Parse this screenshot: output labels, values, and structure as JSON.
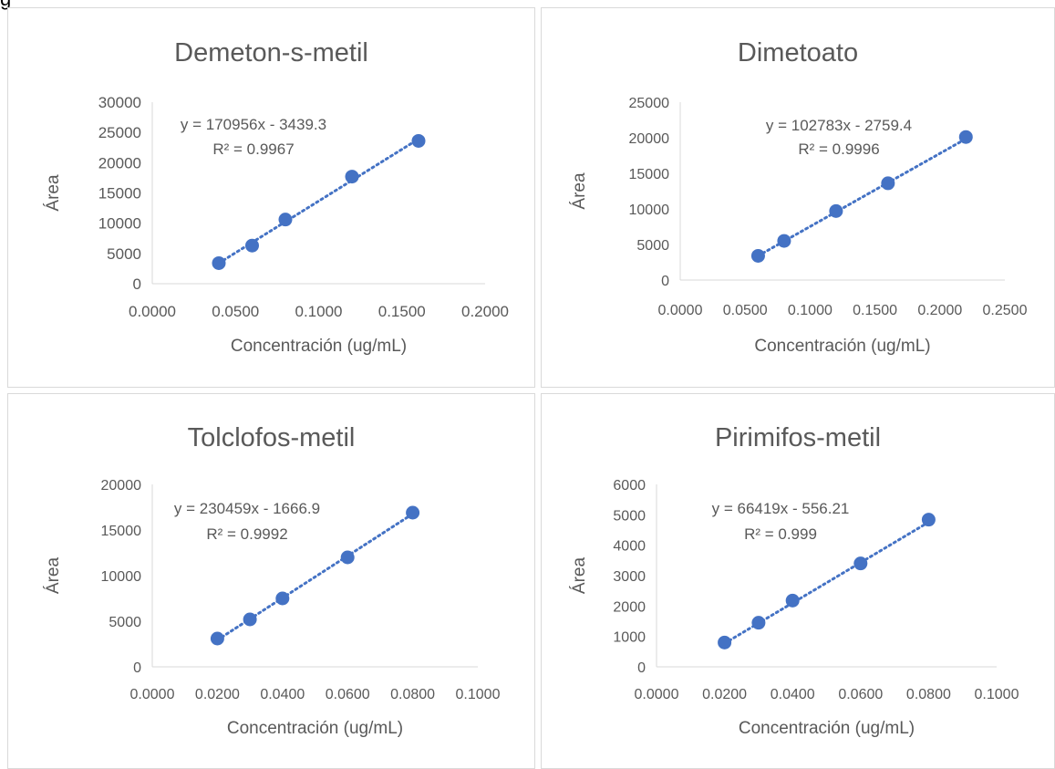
{
  "page": {
    "top_fragment": "g"
  },
  "chart_data": [
    {
      "type": "scatter",
      "title": "Demeton-s-metil",
      "xlabel": "Concentración (ug/mL)",
      "ylabel": "Área",
      "xlim": [
        0,
        0.2
      ],
      "ylim": [
        0,
        30000
      ],
      "xticks": [
        "0.0000",
        "0.0500",
        "0.1000",
        "0.1500",
        "0.2000"
      ],
      "yticks": [
        "0",
        "5000",
        "10000",
        "15000",
        "20000",
        "25000",
        "30000"
      ],
      "x": [
        0.04,
        0.06,
        0.08,
        0.12,
        0.16
      ],
      "y": [
        3400,
        6300,
        10600,
        17700,
        23600
      ],
      "trendline": {
        "slope": 170956,
        "intercept": -3439.3
      },
      "equation": "y = 170956x - 3439.3",
      "r2": "R² = 0.9967",
      "color": "#4472c4"
    },
    {
      "type": "scatter",
      "title": "Dimetoato",
      "xlabel": "Concentración (ug/mL)",
      "ylabel": "Área",
      "xlim": [
        0,
        0.25
      ],
      "ylim": [
        0,
        25000
      ],
      "xticks": [
        "0.0000",
        "0.0500",
        "0.1000",
        "0.1500",
        "0.2000",
        "0.2500"
      ],
      "yticks": [
        "0",
        "5000",
        "10000",
        "15000",
        "20000",
        "25000"
      ],
      "x": [
        0.06,
        0.08,
        0.12,
        0.16,
        0.22
      ],
      "y": [
        3400,
        5500,
        9700,
        13600,
        20100
      ],
      "trendline": {
        "slope": 102783,
        "intercept": -2759.4
      },
      "equation": "y = 102783x - 2759.4",
      "r2": "R² = 0.9996",
      "color": "#4472c4"
    },
    {
      "type": "scatter",
      "title": "Tolclofos-metil",
      "xlabel": "Concentración (ug/mL)",
      "ylabel": "Área",
      "xlim": [
        0,
        0.1
      ],
      "ylim": [
        0,
        20000
      ],
      "xticks": [
        "0.0000",
        "0.0200",
        "0.0400",
        "0.0600",
        "0.0800",
        "0.1000"
      ],
      "yticks": [
        "0",
        "5000",
        "10000",
        "15000",
        "20000"
      ],
      "x": [
        0.02,
        0.03,
        0.04,
        0.06,
        0.08
      ],
      "y": [
        3100,
        5200,
        7500,
        12000,
        16900
      ],
      "trendline": {
        "slope": 230459,
        "intercept": -1666.9
      },
      "equation": "y = 230459x - 1666.9",
      "r2": "R² = 0.9992",
      "color": "#4472c4"
    },
    {
      "type": "scatter",
      "title": "Pirimifos-metil",
      "xlabel": "Concentración (ug/mL)",
      "ylabel": "Área",
      "xlim": [
        0,
        0.1
      ],
      "ylim": [
        0,
        6000
      ],
      "xticks": [
        "0.0000",
        "0.0200",
        "0.0400",
        "0.0600",
        "0.0800",
        "0.1000"
      ],
      "yticks": [
        "0",
        "1000",
        "2000",
        "3000",
        "4000",
        "5000",
        "6000"
      ],
      "x": [
        0.02,
        0.03,
        0.04,
        0.06,
        0.08
      ],
      "y": [
        800,
        1450,
        2180,
        3400,
        4840
      ],
      "trendline": {
        "slope": 66419,
        "intercept": -556.21
      },
      "equation": "y = 66419x - 556.21",
      "r2": "R² = 0.999",
      "color": "#4472c4"
    }
  ]
}
